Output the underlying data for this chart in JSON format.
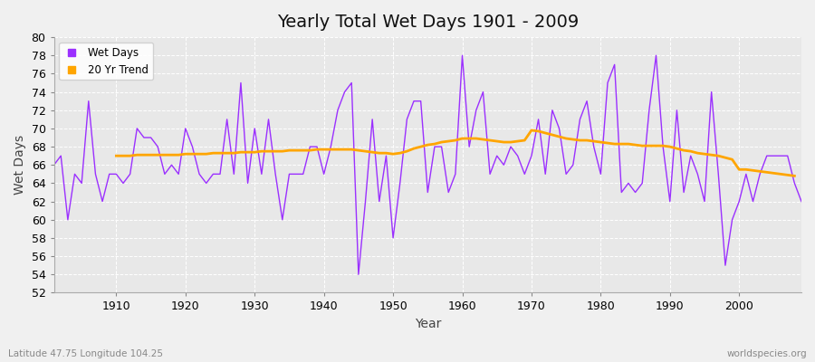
{
  "title": "Yearly Total Wet Days 1901 - 2009",
  "xlabel": "Year",
  "ylabel": "Wet Days",
  "subtitle_left": "Latitude 47.75 Longitude 104.25",
  "subtitle_right": "worldspecies.org",
  "line_color": "#9B30FF",
  "trend_color": "#FFA500",
  "background_color": "#F0F0F0",
  "plot_bg_color": "#E8E8E8",
  "years": [
    1901,
    1902,
    1903,
    1904,
    1905,
    1906,
    1907,
    1908,
    1909,
    1910,
    1911,
    1912,
    1913,
    1914,
    1915,
    1916,
    1917,
    1918,
    1919,
    1920,
    1921,
    1922,
    1923,
    1924,
    1925,
    1926,
    1927,
    1928,
    1929,
    1930,
    1931,
    1932,
    1933,
    1934,
    1935,
    1936,
    1937,
    1938,
    1939,
    1940,
    1941,
    1942,
    1943,
    1944,
    1945,
    1946,
    1947,
    1948,
    1949,
    1950,
    1951,
    1952,
    1953,
    1954,
    1955,
    1956,
    1957,
    1958,
    1959,
    1960,
    1961,
    1962,
    1963,
    1964,
    1965,
    1966,
    1967,
    1968,
    1969,
    1970,
    1971,
    1972,
    1973,
    1974,
    1975,
    1976,
    1977,
    1978,
    1979,
    1980,
    1981,
    1982,
    1983,
    1984,
    1985,
    1986,
    1987,
    1988,
    1989,
    1990,
    1991,
    1992,
    1993,
    1994,
    1995,
    1996,
    1997,
    1998,
    1999,
    2000,
    2001,
    2002,
    2003,
    2004,
    2005,
    2006,
    2007,
    2008,
    2009
  ],
  "wet_days": [
    66,
    67,
    60,
    65,
    64,
    73,
    65,
    62,
    65,
    65,
    64,
    65,
    70,
    69,
    69,
    68,
    65,
    66,
    65,
    70,
    68,
    65,
    64,
    65,
    65,
    71,
    65,
    75,
    64,
    70,
    65,
    71,
    65,
    60,
    65,
    65,
    65,
    68,
    68,
    65,
    68,
    72,
    74,
    75,
    54,
    62,
    71,
    62,
    67,
    58,
    64,
    71,
    73,
    73,
    63,
    68,
    68,
    63,
    65,
    78,
    68,
    72,
    74,
    65,
    67,
    66,
    68,
    67,
    65,
    67,
    71,
    65,
    72,
    70,
    65,
    66,
    71,
    73,
    68,
    65,
    75,
    77,
    63,
    64,
    63,
    64,
    72,
    78,
    68,
    62,
    72,
    63,
    67,
    65,
    62,
    74,
    65,
    55,
    60,
    62,
    65,
    62,
    65,
    67,
    67,
    67,
    67,
    64,
    62
  ],
  "trend_values": [
    null,
    null,
    null,
    null,
    null,
    null,
    null,
    null,
    null,
    67.0,
    67.0,
    67.0,
    67.1,
    67.1,
    67.1,
    67.1,
    67.1,
    67.1,
    67.1,
    67.2,
    67.2,
    67.2,
    67.2,
    67.3,
    67.3,
    67.3,
    67.3,
    67.4,
    67.4,
    67.4,
    67.5,
    67.5,
    67.5,
    67.5,
    67.6,
    67.6,
    67.6,
    67.6,
    67.7,
    67.7,
    67.7,
    67.7,
    67.7,
    67.7,
    67.6,
    67.5,
    67.4,
    67.3,
    67.3,
    67.2,
    67.3,
    67.5,
    67.8,
    68.0,
    68.2,
    68.3,
    68.5,
    68.6,
    68.7,
    68.9,
    68.9,
    68.9,
    68.8,
    68.7,
    68.6,
    68.5,
    68.5,
    68.6,
    68.7,
    69.8,
    69.7,
    69.5,
    69.3,
    69.1,
    68.9,
    68.8,
    68.7,
    68.7,
    68.6,
    68.5,
    68.4,
    68.3,
    68.3,
    68.3,
    68.2,
    68.1,
    68.1,
    68.1,
    68.1,
    68.0,
    67.8,
    67.6,
    67.5,
    67.3,
    67.2,
    67.1,
    67.0,
    66.8,
    66.6,
    65.5,
    65.5,
    65.4,
    65.3,
    65.2,
    65.1,
    65.0,
    64.9,
    64.8,
    null
  ],
  "ylim": [
    52,
    80
  ],
  "yticks": [
    52,
    54,
    56,
    58,
    60,
    62,
    64,
    66,
    68,
    70,
    72,
    74,
    76,
    78,
    80
  ],
  "xlim": [
    1901,
    2009
  ],
  "xticks": [
    1910,
    1920,
    1930,
    1940,
    1950,
    1960,
    1970,
    1980,
    1990,
    2000
  ],
  "legend_labels": [
    "Wet Days",
    "20 Yr Trend"
  ],
  "title_fontsize": 14,
  "axis_fontsize": 10,
  "tick_fontsize": 9
}
